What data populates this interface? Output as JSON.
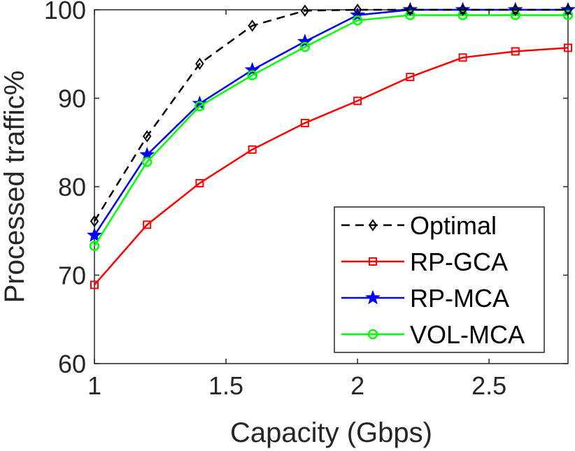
{
  "chart_data": {
    "type": "line",
    "title": "",
    "xlabel": "Capacity (Gbps)",
    "ylabel": "Processed traffic%",
    "xlim": [
      1,
      2.8
    ],
    "ylim": [
      60,
      100
    ],
    "xticks": [
      1,
      1.5,
      2,
      2.5
    ],
    "yticks": [
      60,
      70,
      80,
      90,
      100
    ],
    "xtick_labels": [
      "1",
      "1.5",
      "2",
      "2.5"
    ],
    "ytick_labels": [
      "60",
      "70",
      "80",
      "90",
      "100"
    ],
    "grid": false,
    "legend": "bottom-right",
    "x": [
      1.0,
      1.2,
      1.4,
      1.6,
      1.8,
      2.0,
      2.2,
      2.4,
      2.6,
      2.8
    ],
    "series": [
      {
        "name": "Optimal",
        "color": "#000000",
        "dash": "dashed",
        "marker": "diamond",
        "values": [
          76.1,
          85.7,
          93.9,
          98.2,
          99.9,
          100,
          100,
          100,
          100,
          100
        ]
      },
      {
        "name": "RP-GCA",
        "color": "#ff0000",
        "dash": "solid",
        "marker": "square",
        "values": [
          68.9,
          75.7,
          80.4,
          84.2,
          87.2,
          89.7,
          92.4,
          94.6,
          95.3,
          95.7
        ]
      },
      {
        "name": "RP-MCA",
        "color": "#0000ff",
        "dash": "solid",
        "marker": "star",
        "values": [
          74.5,
          83.6,
          89.4,
          93.2,
          96.4,
          99.4,
          100,
          100,
          100,
          100
        ]
      },
      {
        "name": "VOL-MCA",
        "color": "#00ff00",
        "dash": "solid",
        "marker": "circle",
        "values": [
          73.3,
          82.8,
          89.1,
          92.6,
          95.8,
          98.8,
          99.4,
          99.4,
          99.4,
          99.4
        ]
      }
    ]
  }
}
